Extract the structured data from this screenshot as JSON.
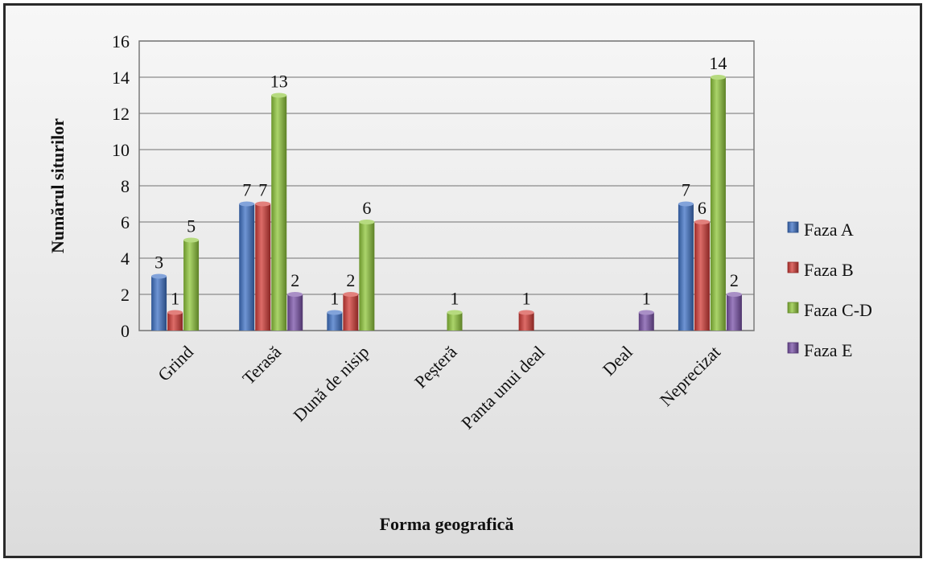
{
  "chart_data": {
    "type": "bar",
    "title": "",
    "xlabel": "Forma geografică",
    "ylabel": "Numărul siturilor",
    "ylim": [
      0,
      16
    ],
    "yticks": [
      0,
      2,
      4,
      6,
      8,
      10,
      12,
      14,
      16
    ],
    "grid": true,
    "legend_position": "right",
    "categories": [
      "Grind",
      "Terasă",
      "Dună de nisip",
      "Peșteră",
      "Panta unui deal",
      "Deal",
      "Neprecizat"
    ],
    "series": [
      {
        "name": "Faza A",
        "color": "#3f72c6",
        "values": [
          3,
          7,
          1,
          null,
          null,
          null,
          7
        ]
      },
      {
        "name": "Faza B",
        "color": "#d23b36",
        "values": [
          1,
          7,
          2,
          null,
          1,
          null,
          6
        ]
      },
      {
        "name": "Faza C-D",
        "color": "#8fc63a",
        "values": [
          5,
          13,
          6,
          1,
          null,
          null,
          14
        ]
      },
      {
        "name": "Faza E",
        "color": "#7a52a8",
        "values": [
          null,
          2,
          null,
          null,
          null,
          1,
          2
        ]
      }
    ]
  }
}
